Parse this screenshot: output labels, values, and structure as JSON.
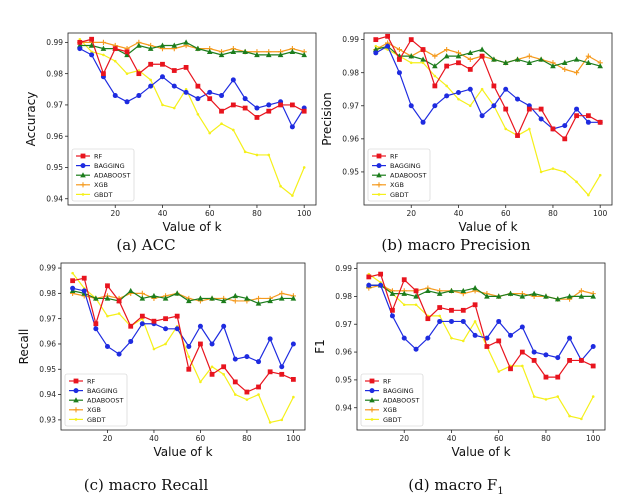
{
  "colors": {
    "RF": "#e8141e",
    "BAGGING": "#1e2be0",
    "ADABOOST": "#1c7d1c",
    "XGB": "#f59a1e",
    "GBDT": "#f5f01a"
  },
  "chart_data": [
    {
      "type": "line",
      "caption": "(a) ACC",
      "xlabel": "Value of k",
      "ylabel": "Accuracy",
      "xlim": [
        0,
        105
      ],
      "ylim": [
        0.938,
        0.993
      ],
      "xticks": [
        20,
        40,
        60,
        80,
        100
      ],
      "xtick_labels": [
        "20",
        "40",
        "60",
        "80",
        "100"
      ],
      "yticks": [
        0.94,
        0.95,
        0.96,
        0.97,
        0.98,
        0.99
      ],
      "ytick_labels": [
        "0.94",
        "0.95",
        "0.96",
        "0.97",
        "0.98",
        "0.99"
      ],
      "legend": "lower-left",
      "x": [
        5,
        10,
        15,
        20,
        25,
        30,
        35,
        40,
        45,
        50,
        55,
        60,
        65,
        70,
        75,
        80,
        85,
        90,
        95,
        100
      ],
      "series": [
        {
          "name": "RF",
          "marker": "square",
          "values": [
            0.99,
            0.991,
            0.98,
            0.988,
            0.987,
            0.98,
            0.983,
            0.983,
            0.981,
            0.982,
            0.976,
            0.972,
            0.968,
            0.97,
            0.969,
            0.966,
            0.968,
            0.97,
            0.97,
            0.968
          ]
        },
        {
          "name": "BAGGING",
          "marker": "circle",
          "values": [
            0.988,
            0.986,
            0.979,
            0.973,
            0.971,
            0.973,
            0.976,
            0.979,
            0.976,
            0.974,
            0.972,
            0.974,
            0.973,
            0.978,
            0.972,
            0.969,
            0.97,
            0.971,
            0.963,
            0.969
          ]
        },
        {
          "name": "ADABOOST",
          "marker": "triangle",
          "values": [
            0.989,
            0.989,
            0.988,
            0.988,
            0.986,
            0.989,
            0.988,
            0.989,
            0.989,
            0.99,
            0.988,
            0.987,
            0.986,
            0.987,
            0.987,
            0.986,
            0.986,
            0.986,
            0.987,
            0.986
          ]
        },
        {
          "name": "XGB",
          "marker": "plus",
          "values": [
            0.99,
            0.99,
            0.99,
            0.989,
            0.988,
            0.99,
            0.989,
            0.988,
            0.988,
            0.989,
            0.988,
            0.988,
            0.987,
            0.988,
            0.987,
            0.987,
            0.987,
            0.987,
            0.988,
            0.987
          ]
        },
        {
          "name": "GBDT",
          "marker": "dot",
          "values": [
            0.991,
            0.987,
            0.986,
            0.984,
            0.98,
            0.981,
            0.978,
            0.97,
            0.969,
            0.975,
            0.967,
            0.961,
            0.964,
            0.962,
            0.955,
            0.954,
            0.954,
            0.944,
            0.941,
            0.95
          ]
        }
      ]
    },
    {
      "type": "line",
      "caption": "(b) macro Precision",
      "xlabel": "Value of k",
      "ylabel": "Precision",
      "xlim": [
        0,
        105
      ],
      "ylim": [
        0.94,
        0.992
      ],
      "xticks": [
        20,
        40,
        60,
        80,
        100
      ],
      "xtick_labels": [
        "20",
        "40",
        "60",
        "80",
        "100"
      ],
      "yticks": [
        0.95,
        0.96,
        0.97,
        0.98,
        0.99
      ],
      "ytick_labels": [
        "0.95",
        "0.96",
        "0.97",
        "0.98",
        "0.99"
      ],
      "legend": "lower-left",
      "x": [
        5,
        10,
        15,
        20,
        25,
        30,
        35,
        40,
        45,
        50,
        55,
        60,
        65,
        70,
        75,
        80,
        85,
        90,
        95,
        100
      ],
      "series": [
        {
          "name": "RF",
          "marker": "square",
          "values": [
            0.99,
            0.991,
            0.984,
            0.99,
            0.987,
            0.976,
            0.982,
            0.983,
            0.981,
            0.985,
            0.976,
            0.969,
            0.961,
            0.969,
            0.969,
            0.963,
            0.96,
            0.967,
            0.967,
            0.965
          ]
        },
        {
          "name": "BAGGING",
          "marker": "circle",
          "values": [
            0.986,
            0.988,
            0.98,
            0.97,
            0.965,
            0.97,
            0.973,
            0.974,
            0.975,
            0.967,
            0.97,
            0.975,
            0.972,
            0.97,
            0.966,
            0.963,
            0.964,
            0.969,
            0.965,
            0.965
          ]
        },
        {
          "name": "ADABOOST",
          "marker": "triangle",
          "values": [
            0.987,
            0.988,
            0.985,
            0.985,
            0.984,
            0.982,
            0.985,
            0.985,
            0.986,
            0.987,
            0.984,
            0.983,
            0.984,
            0.983,
            0.984,
            0.982,
            0.983,
            0.984,
            0.983,
            0.982
          ]
        },
        {
          "name": "XGB",
          "marker": "plus",
          "values": [
            0.987,
            0.989,
            0.987,
            0.985,
            0.987,
            0.985,
            0.987,
            0.986,
            0.984,
            0.985,
            0.984,
            0.983,
            0.984,
            0.985,
            0.984,
            0.983,
            0.981,
            0.98,
            0.985,
            0.983
          ]
        },
        {
          "name": "GBDT",
          "marker": "dot",
          "values": [
            0.988,
            0.987,
            0.985,
            0.983,
            0.983,
            0.979,
            0.976,
            0.972,
            0.97,
            0.975,
            0.97,
            0.963,
            0.961,
            0.963,
            0.95,
            0.951,
            0.95,
            0.947,
            0.943,
            0.949
          ]
        }
      ]
    },
    {
      "type": "line",
      "caption": "(c) macro Recall",
      "xlabel": "Value of k",
      "ylabel": "Recall",
      "xlim": [
        0,
        105
      ],
      "ylim": [
        0.926,
        0.992
      ],
      "xticks": [
        20,
        40,
        60,
        80,
        100
      ],
      "xtick_labels": [
        "20",
        "40",
        "60",
        "80",
        "100"
      ],
      "yticks": [
        0.93,
        0.94,
        0.95,
        0.96,
        0.97,
        0.98,
        0.99
      ],
      "ytick_labels": [
        "0.93",
        "0.94",
        "0.95",
        "0.96",
        "0.97",
        "0.98",
        "0.99"
      ],
      "legend": "lower-left",
      "x": [
        5,
        10,
        15,
        20,
        25,
        30,
        35,
        40,
        45,
        50,
        55,
        60,
        65,
        70,
        75,
        80,
        85,
        90,
        95,
        100
      ],
      "series": [
        {
          "name": "RF",
          "marker": "square",
          "values": [
            0.985,
            0.986,
            0.968,
            0.983,
            0.977,
            0.967,
            0.971,
            0.969,
            0.97,
            0.971,
            0.95,
            0.96,
            0.948,
            0.951,
            0.945,
            0.941,
            0.943,
            0.949,
            0.948,
            0.946
          ]
        },
        {
          "name": "BAGGING",
          "marker": "circle",
          "values": [
            0.982,
            0.981,
            0.966,
            0.959,
            0.956,
            0.961,
            0.968,
            0.968,
            0.966,
            0.966,
            0.959,
            0.967,
            0.96,
            0.967,
            0.954,
            0.955,
            0.953,
            0.962,
            0.951,
            0.96
          ]
        },
        {
          "name": "ADABOOST",
          "marker": "triangle",
          "values": [
            0.981,
            0.98,
            0.978,
            0.978,
            0.977,
            0.981,
            0.978,
            0.979,
            0.978,
            0.98,
            0.977,
            0.978,
            0.978,
            0.977,
            0.979,
            0.978,
            0.976,
            0.977,
            0.978,
            0.978
          ]
        },
        {
          "name": "XGB",
          "marker": "plus",
          "values": [
            0.98,
            0.979,
            0.978,
            0.979,
            0.978,
            0.98,
            0.98,
            0.978,
            0.979,
            0.98,
            0.978,
            0.977,
            0.978,
            0.978,
            0.977,
            0.977,
            0.978,
            0.978,
            0.98,
            0.979
          ]
        },
        {
          "name": "GBDT",
          "marker": "dot",
          "values": [
            0.988,
            0.982,
            0.978,
            0.971,
            0.972,
            0.967,
            0.97,
            0.958,
            0.96,
            0.967,
            0.955,
            0.945,
            0.951,
            0.948,
            0.94,
            0.938,
            0.94,
            0.929,
            0.93,
            0.939
          ]
        }
      ]
    },
    {
      "type": "line",
      "caption": "(d) macro F",
      "caption_subscript": "1",
      "xlabel": "Value of k",
      "ylabel": "F1",
      "xlim": [
        0,
        105
      ],
      "ylim": [
        0.932,
        0.992
      ],
      "xticks": [
        20,
        40,
        60,
        80,
        100
      ],
      "xtick_labels": [
        "20",
        "40",
        "60",
        "80",
        "100"
      ],
      "yticks": [
        0.94,
        0.95,
        0.96,
        0.97,
        0.98,
        0.99
      ],
      "ytick_labels": [
        "0.94",
        "0.95",
        "0.96",
        "0.97",
        "0.98",
        "0.99"
      ],
      "legend": "lower-left",
      "x": [
        5,
        10,
        15,
        20,
        25,
        30,
        35,
        40,
        45,
        50,
        55,
        60,
        65,
        70,
        75,
        80,
        85,
        90,
        95,
        100
      ],
      "series": [
        {
          "name": "RF",
          "marker": "square",
          "values": [
            0.987,
            0.988,
            0.975,
            0.986,
            0.982,
            0.972,
            0.976,
            0.975,
            0.975,
            0.977,
            0.962,
            0.964,
            0.954,
            0.96,
            0.957,
            0.951,
            0.951,
            0.957,
            0.957,
            0.955
          ]
        },
        {
          "name": "BAGGING",
          "marker": "circle",
          "values": [
            0.984,
            0.984,
            0.973,
            0.965,
            0.961,
            0.965,
            0.971,
            0.971,
            0.971,
            0.966,
            0.965,
            0.971,
            0.966,
            0.969,
            0.96,
            0.959,
            0.958,
            0.965,
            0.957,
            0.962
          ]
        },
        {
          "name": "ADABOOST",
          "marker": "triangle",
          "values": [
            0.984,
            0.984,
            0.981,
            0.981,
            0.98,
            0.982,
            0.981,
            0.982,
            0.982,
            0.983,
            0.98,
            0.98,
            0.981,
            0.98,
            0.981,
            0.98,
            0.979,
            0.98,
            0.98,
            0.98
          ]
        },
        {
          "name": "XGB",
          "marker": "plus",
          "values": [
            0.983,
            0.984,
            0.982,
            0.982,
            0.982,
            0.983,
            0.982,
            0.982,
            0.981,
            0.982,
            0.981,
            0.98,
            0.981,
            0.981,
            0.98,
            0.98,
            0.979,
            0.979,
            0.982,
            0.981
          ]
        },
        {
          "name": "GBDT",
          "marker": "dot",
          "values": [
            0.988,
            0.985,
            0.981,
            0.977,
            0.977,
            0.973,
            0.973,
            0.965,
            0.964,
            0.971,
            0.962,
            0.953,
            0.955,
            0.955,
            0.944,
            0.943,
            0.944,
            0.937,
            0.936,
            0.944
          ]
        }
      ]
    }
  ]
}
